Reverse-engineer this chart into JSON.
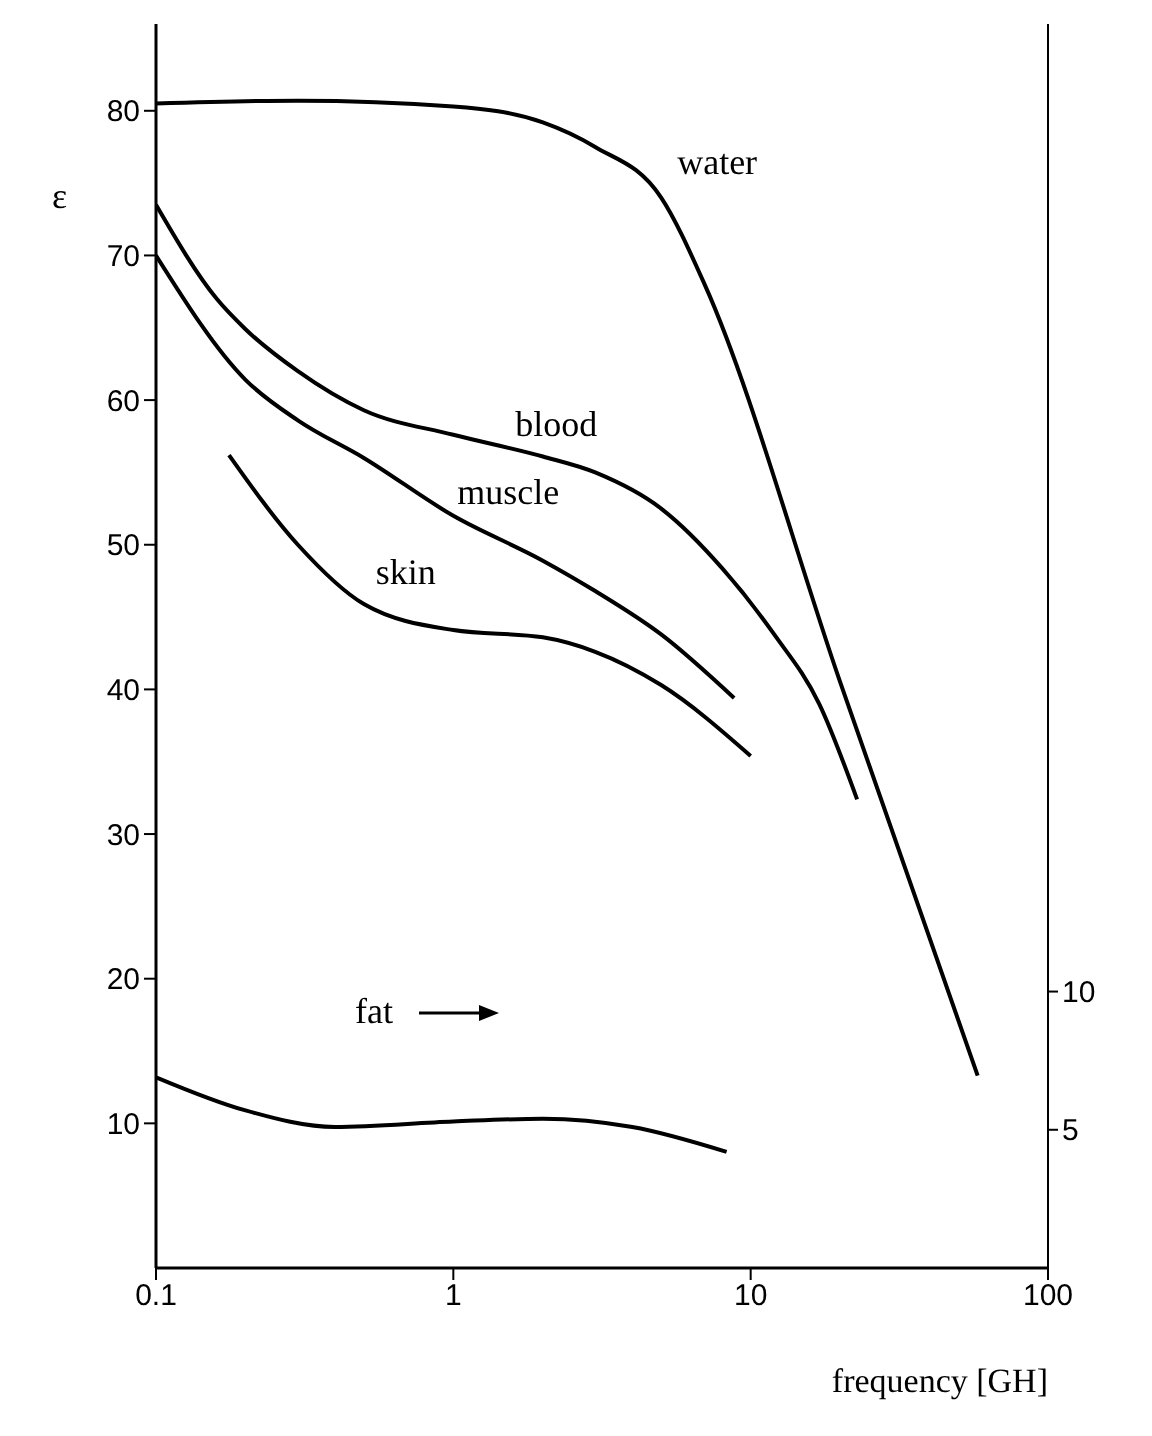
{
  "chart_data": {
    "type": "line",
    "xlabel": "frequency [GH]",
    "ylabel": "ε",
    "log": "x",
    "xlim": [
      0.1,
      100
    ],
    "xticks": [
      0.1,
      1,
      10,
      100
    ],
    "ylim": [
      0,
      86
    ],
    "yticks": [
      10,
      20,
      30,
      40,
      50,
      60,
      70,
      80
    ],
    "y2lim": [
      0,
      45
    ],
    "y2ticks": [
      5,
      10
    ],
    "grid": false,
    "marker": "none",
    "line_style": "solid",
    "series": [
      {
        "name": "water",
        "color": "#000000",
        "x": [
          0.1,
          0.3,
          1,
          2,
          3,
          5,
          7,
          20,
          58
        ],
        "values": [
          80.5,
          80.7,
          80.3,
          79.2,
          77.5,
          74,
          68,
          40.5,
          13.3
        ]
      },
      {
        "name": "blood",
        "color": "#000000",
        "x": [
          0.1,
          0.16,
          0.2,
          0.3,
          0.5,
          1,
          2,
          3,
          5,
          8,
          12,
          17,
          22.8
        ],
        "values": [
          73.5,
          67,
          64.9,
          62,
          59.3,
          57.6,
          56.1,
          55,
          52.5,
          48.4,
          43.8,
          39,
          32.4
        ]
      },
      {
        "name": "muscle",
        "color": "#000000",
        "x": [
          0.1,
          0.2,
          0.3,
          0.5,
          1,
          2,
          3,
          5,
          8.8
        ],
        "values": [
          70,
          61.4,
          58.6,
          56,
          52,
          48.9,
          46.8,
          43.8,
          39.4
        ]
      },
      {
        "name": "skin",
        "color": "#000000",
        "x": [
          0.176,
          0.3,
          0.5,
          1,
          2,
          3,
          5,
          10
        ],
        "values": [
          56.2,
          50,
          45.9,
          44.1,
          43.6,
          42.6,
          40.3,
          35.4
        ]
      },
      {
        "name": "fat",
        "color": "#000000",
        "axis": "y2",
        "x": [
          0.1,
          0.2,
          0.4,
          1,
          2,
          4,
          8.3
        ],
        "values": [
          6.9,
          5.7,
          5.1,
          5.3,
          5.4,
          5.1,
          4.2
        ]
      }
    ]
  }
}
